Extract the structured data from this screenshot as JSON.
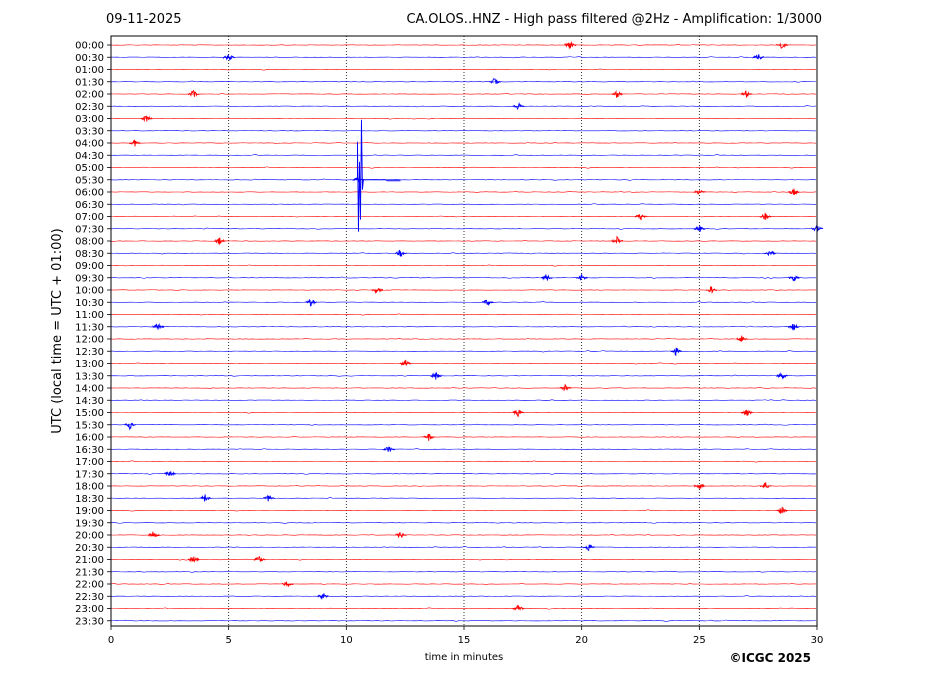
{
  "header": {
    "date": "09-11-2025",
    "title": "CA.OLOS..HNZ - High pass filtered @2Hz - Amplification: 1/3000"
  },
  "credit": "©ICGC 2025",
  "chart_data": {
    "type": "line",
    "xlabel": "time in minutes",
    "ylabel": "UTC (local time = UTC + 01:00)",
    "xlim": [
      0,
      30
    ],
    "xticks": [
      "0",
      "5",
      "10",
      "15",
      "20",
      "25",
      "30"
    ],
    "x_gridlines_at": [
      5,
      10,
      15,
      20,
      25
    ],
    "grid_style": "dotted vertical",
    "trace_colors": [
      "#ff0000",
      "#0000ff"
    ],
    "rows": [
      "00:00",
      "00:30",
      "01:00",
      "01:30",
      "02:00",
      "02:30",
      "03:00",
      "03:30",
      "04:00",
      "04:30",
      "05:00",
      "05:30",
      "06:00",
      "06:30",
      "07:00",
      "07:30",
      "08:00",
      "08:30",
      "09:00",
      "09:30",
      "10:00",
      "10:30",
      "11:00",
      "11:30",
      "12:00",
      "12:30",
      "13:00",
      "13:30",
      "14:00",
      "14:30",
      "15:00",
      "15:30",
      "16:00",
      "16:30",
      "17:00",
      "17:30",
      "18:00",
      "18:30",
      "19:00",
      "19:30",
      "20:00",
      "20:30",
      "21:00",
      "21:30",
      "22:00",
      "22:30",
      "23:00",
      "23:30"
    ],
    "events": [
      {
        "row": "00:00",
        "minute": 19.5
      },
      {
        "row": "00:00",
        "minute": 28.5
      },
      {
        "row": "00:30",
        "minute": 5.0
      },
      {
        "row": "00:30",
        "minute": 27.5
      },
      {
        "row": "01:30",
        "minute": 16.3
      },
      {
        "row": "02:00",
        "minute": 3.5
      },
      {
        "row": "02:00",
        "minute": 21.5
      },
      {
        "row": "02:00",
        "minute": 27.0
      },
      {
        "row": "02:30",
        "minute": 17.3
      },
      {
        "row": "03:00",
        "minute": 1.5
      },
      {
        "row": "04:00",
        "minute": 1.0
      },
      {
        "row": "05:30",
        "minute": 10.5
      },
      {
        "row": "06:00",
        "minute": 25.0
      },
      {
        "row": "06:00",
        "minute": 29.0
      },
      {
        "row": "07:00",
        "minute": 22.5
      },
      {
        "row": "07:00",
        "minute": 27.8
      },
      {
        "row": "07:30",
        "minute": 25.0
      },
      {
        "row": "07:30",
        "minute": 30.0
      },
      {
        "row": "08:00",
        "minute": 4.6
      },
      {
        "row": "08:00",
        "minute": 21.5
      },
      {
        "row": "08:30",
        "minute": 12.3
      },
      {
        "row": "08:30",
        "minute": 28.0
      },
      {
        "row": "09:30",
        "minute": 18.5
      },
      {
        "row": "09:30",
        "minute": 20.0
      },
      {
        "row": "09:30",
        "minute": 29.0
      },
      {
        "row": "10:00",
        "minute": 11.3
      },
      {
        "row": "10:00",
        "minute": 25.5
      },
      {
        "row": "10:30",
        "minute": 8.5
      },
      {
        "row": "10:30",
        "minute": 16.0
      },
      {
        "row": "11:30",
        "minute": 2.0
      },
      {
        "row": "11:30",
        "minute": 29.0
      },
      {
        "row": "12:00",
        "minute": 26.8
      },
      {
        "row": "12:30",
        "minute": 24.0
      },
      {
        "row": "13:00",
        "minute": 12.5
      },
      {
        "row": "13:30",
        "minute": 13.8
      },
      {
        "row": "13:30",
        "minute": 28.5
      },
      {
        "row": "14:00",
        "minute": 19.3
      },
      {
        "row": "15:00",
        "minute": 17.3
      },
      {
        "row": "15:00",
        "minute": 27.0
      },
      {
        "row": "15:30",
        "minute": 0.8
      },
      {
        "row": "16:00",
        "minute": 13.5
      },
      {
        "row": "16:30",
        "minute": 11.8
      },
      {
        "row": "17:30",
        "minute": 2.5
      },
      {
        "row": "18:00",
        "minute": 25.0
      },
      {
        "row": "18:00",
        "minute": 27.8
      },
      {
        "row": "18:30",
        "minute": 4.0
      },
      {
        "row": "18:30",
        "minute": 6.7
      },
      {
        "row": "19:00",
        "minute": 28.5
      },
      {
        "row": "20:00",
        "minute": 1.8
      },
      {
        "row": "20:00",
        "minute": 12.3
      },
      {
        "row": "20:30",
        "minute": 20.3
      },
      {
        "row": "21:00",
        "minute": 3.5
      },
      {
        "row": "21:00",
        "minute": 6.3
      },
      {
        "row": "22:00",
        "minute": 7.5
      },
      {
        "row": "22:30",
        "minute": 9.0
      },
      {
        "row": "23:00",
        "minute": 17.3
      }
    ],
    "large_event": {
      "row": "05:30",
      "minute": 10.6
    }
  }
}
